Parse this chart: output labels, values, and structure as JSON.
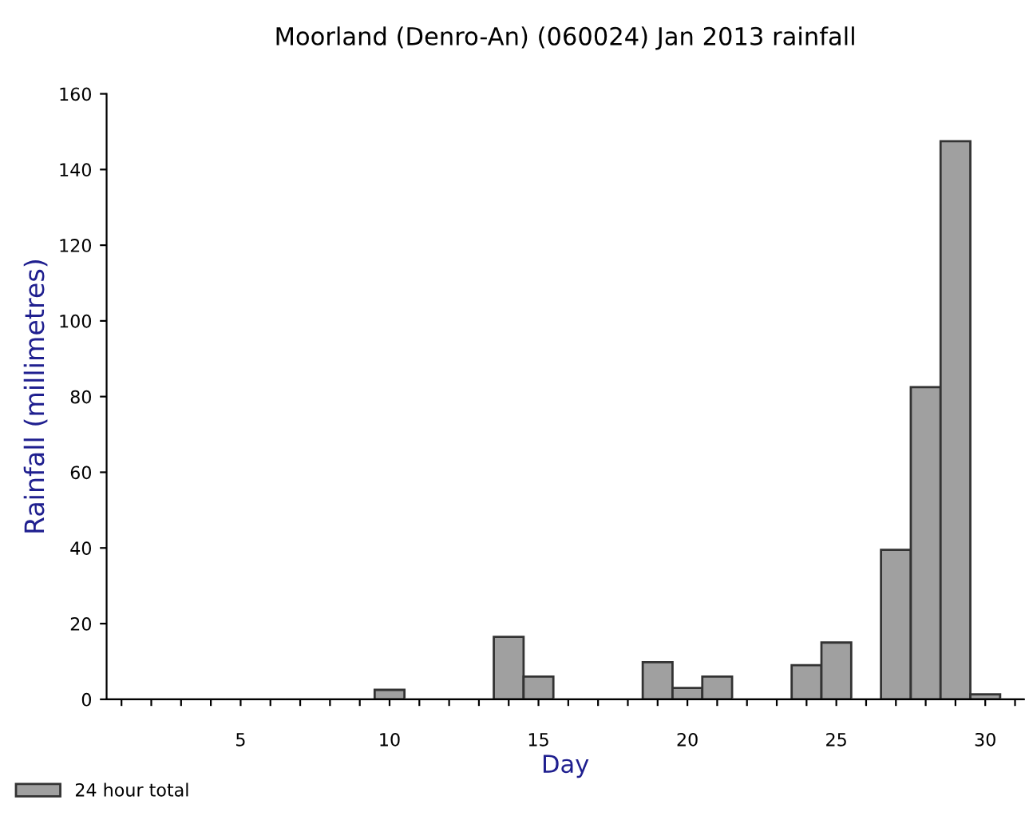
{
  "chart_data": {
    "type": "bar",
    "title": "Moorland (Denro-An) (060024) Jan 2013 rainfall",
    "xlabel": "Day",
    "ylabel": "Rainfall (millimetres)",
    "x": [
      1,
      2,
      3,
      4,
      5,
      6,
      7,
      8,
      9,
      10,
      11,
      12,
      13,
      14,
      15,
      16,
      17,
      18,
      19,
      20,
      21,
      22,
      23,
      24,
      25,
      26,
      27,
      28,
      29,
      30,
      31
    ],
    "series": [
      {
        "name": "24 hour total",
        "color": "#a0a0a0",
        "values": [
          0,
          0,
          0,
          0,
          0,
          0,
          0,
          0,
          0,
          2.5,
          0,
          0,
          0,
          16.5,
          6,
          0,
          0,
          0,
          9.8,
          3,
          6,
          0,
          0,
          9,
          15,
          0,
          39.5,
          82.5,
          147.5,
          1.3,
          0
        ]
      }
    ],
    "xlim": [
      0.5,
      31.3
    ],
    "ylim": [
      0,
      160
    ],
    "xticks": [
      {
        "value": 1,
        "label": null
      },
      {
        "value": 2,
        "label": null
      },
      {
        "value": 3,
        "label": null
      },
      {
        "value": 4,
        "label": null
      },
      5,
      {
        "value": 6,
        "label": null
      },
      {
        "value": 7,
        "label": null
      },
      {
        "value": 8,
        "label": null
      },
      {
        "value": 9,
        "label": null
      },
      10,
      {
        "value": 11,
        "label": null
      },
      {
        "value": 12,
        "label": null
      },
      {
        "value": 13,
        "label": null
      },
      {
        "value": 14,
        "label": null
      },
      15,
      {
        "value": 16,
        "label": null
      },
      {
        "value": 17,
        "label": null
      },
      {
        "value": 18,
        "label": null
      },
      {
        "value": 19,
        "label": null
      },
      20,
      {
        "value": 21,
        "label": null
      },
      {
        "value": 22,
        "label": null
      },
      {
        "value": 23,
        "label": null
      },
      {
        "value": 24,
        "label": null
      },
      25,
      {
        "value": 26,
        "label": null
      },
      {
        "value": 27,
        "label": null
      },
      {
        "value": 28,
        "label": null
      },
      {
        "value": 29,
        "label": null
      },
      30,
      {
        "value": 31,
        "label": null
      }
    ],
    "yticks": [
      0,
      20,
      40,
      60,
      80,
      100,
      120,
      140,
      160
    ],
    "grid": false,
    "legend": "bottom left"
  }
}
